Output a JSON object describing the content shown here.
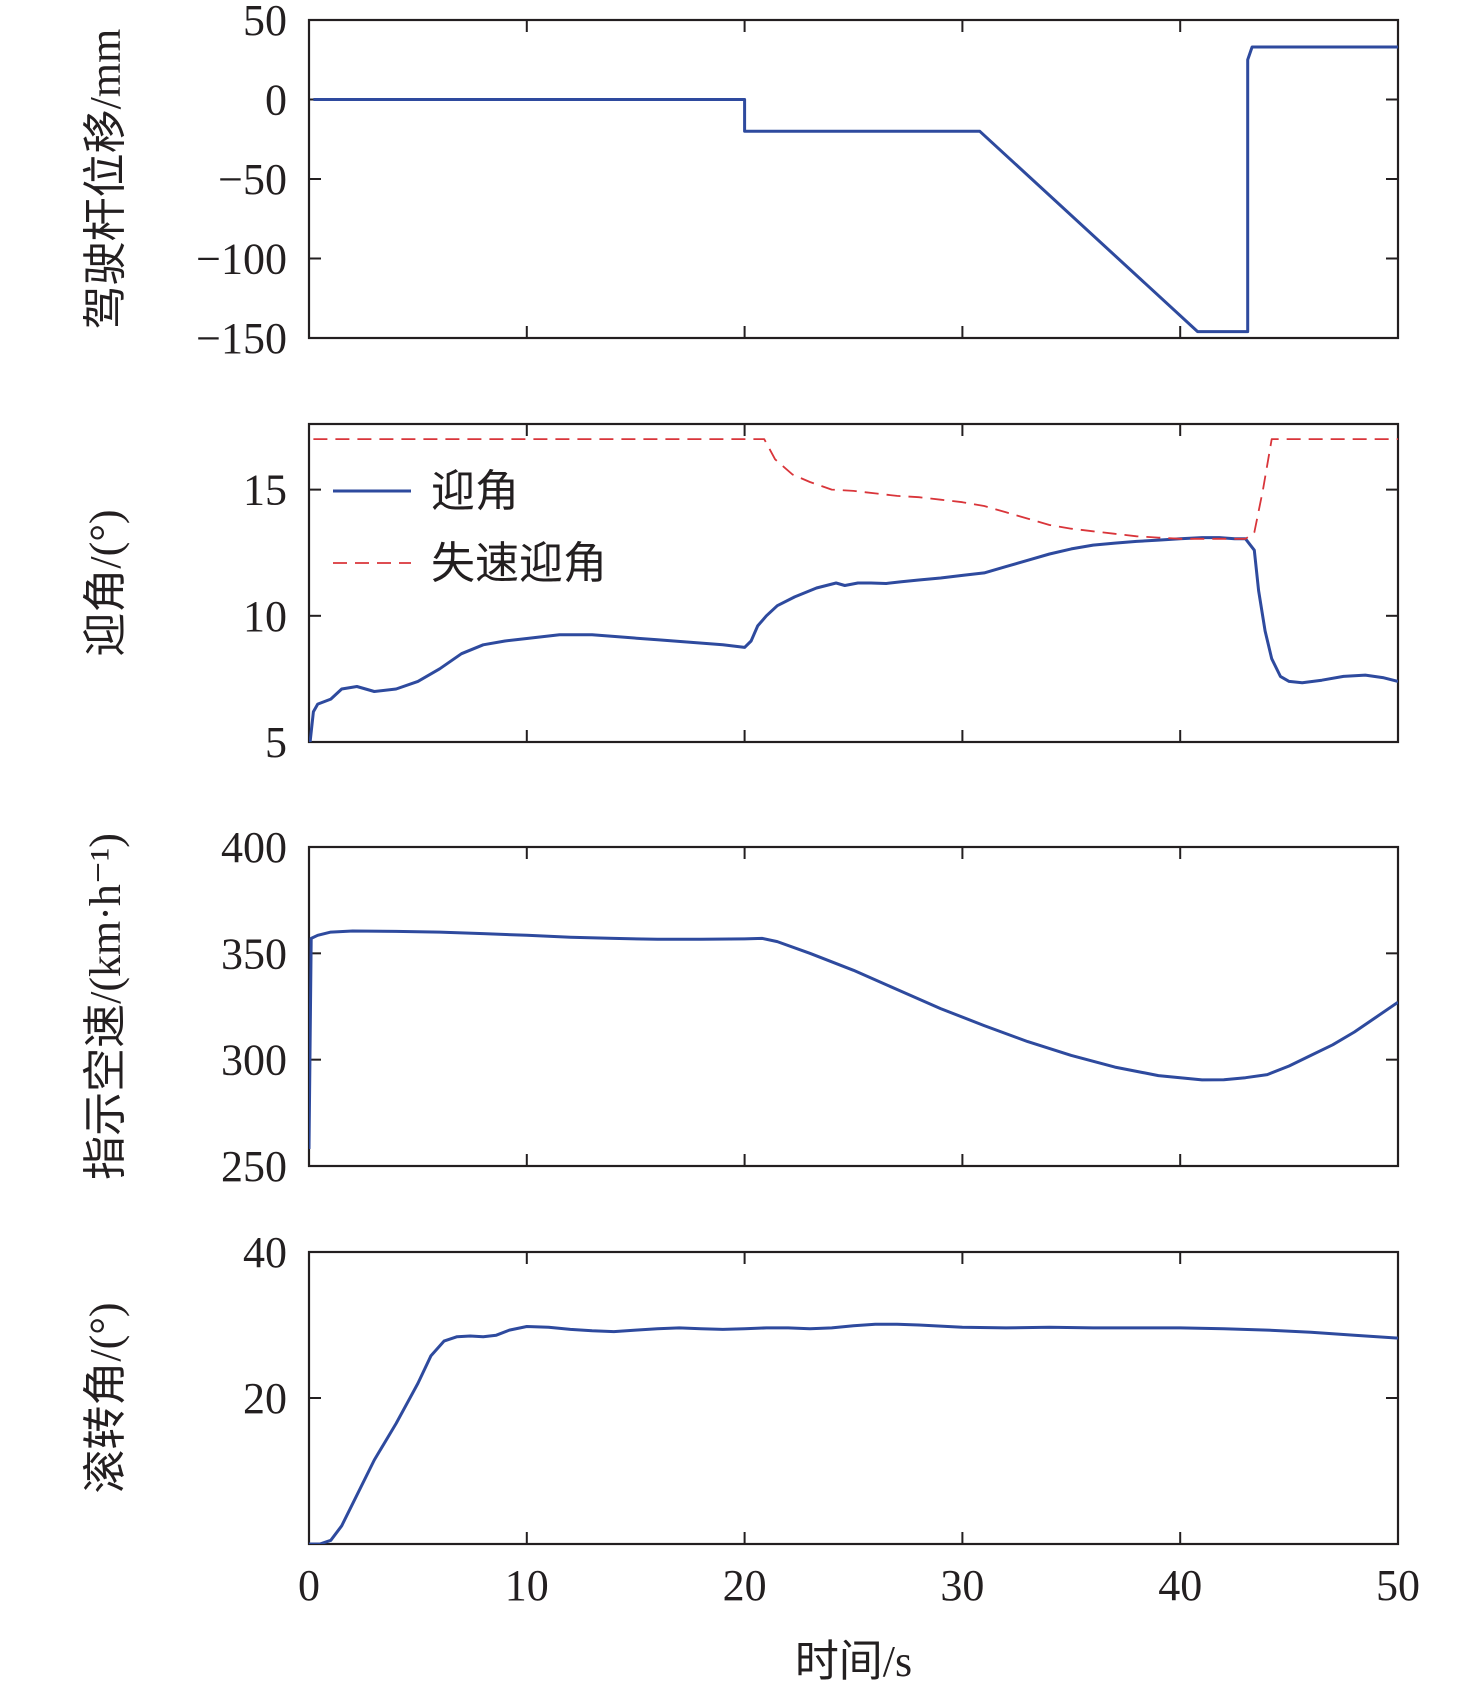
{
  "chart_data": [
    {
      "type": "line",
      "ylabel": "驾驶杆位移/mm",
      "xlim": [
        0,
        50
      ],
      "ylim": [
        -150,
        50
      ],
      "yticks": [
        50,
        0,
        -50,
        -100,
        -150
      ],
      "ytick_labels": [
        "50",
        "0",
        "−50",
        "−100",
        "−150"
      ],
      "xticks": [
        10,
        20,
        30,
        40
      ],
      "series": [
        {
          "color": "#2e4a9e",
          "dash": "solid",
          "x": [
            0.2,
            20.0,
            20.0,
            30.8,
            40.8,
            43.1,
            43.1,
            43.3,
            50.0
          ],
          "y": [
            0,
            0,
            -20,
            -20,
            -146,
            -146,
            25,
            33,
            33
          ]
        }
      ]
    },
    {
      "type": "line",
      "ylabel": "迎角/(°)",
      "xlim": [
        0,
        50
      ],
      "ylim": [
        5,
        17.6
      ],
      "yticks": [
        15,
        10,
        5
      ],
      "ytick_labels": [
        "15",
        "10",
        "5"
      ],
      "xticks": [
        10,
        20,
        30,
        40
      ],
      "legend_position": "top-left",
      "series": [
        {
          "name": "迎角",
          "color": "#2e4a9e",
          "dash": "solid",
          "x": [
            0.05,
            0.2,
            0.4,
            1.0,
            1.5,
            2.2,
            3.0,
            4.0,
            5.0,
            6.0,
            7.0,
            8.0,
            9.0,
            10.0,
            11.5,
            13.0,
            14.5,
            16.0,
            17.5,
            19.0,
            20.0,
            20.3,
            20.6,
            21.0,
            21.5,
            22.3,
            23.3,
            24.2,
            24.6,
            25.2,
            25.8,
            26.5,
            27.2,
            28.0,
            29.0,
            30.0,
            31.0,
            32.0,
            33.0,
            34.0,
            35.0,
            36.0,
            37.0,
            38.0,
            39.0,
            40.0,
            41.0,
            41.8,
            42.5,
            43.0,
            43.4,
            43.6,
            43.9,
            44.2,
            44.6,
            45.0,
            45.6,
            46.5,
            47.5,
            48.5,
            49.3,
            50.0
          ],
          "y": [
            5.0,
            6.2,
            6.5,
            6.7,
            7.1,
            7.2,
            7.0,
            7.1,
            7.4,
            7.9,
            8.5,
            8.85,
            9.0,
            9.1,
            9.25,
            9.25,
            9.15,
            9.05,
            8.95,
            8.85,
            8.75,
            9.0,
            9.6,
            10.0,
            10.4,
            10.75,
            11.1,
            11.3,
            11.2,
            11.3,
            11.3,
            11.28,
            11.35,
            11.42,
            11.5,
            11.6,
            11.7,
            11.95,
            12.2,
            12.45,
            12.65,
            12.8,
            12.88,
            12.95,
            13.0,
            13.05,
            13.1,
            13.1,
            13.05,
            13.05,
            12.6,
            11.0,
            9.4,
            8.3,
            7.6,
            7.4,
            7.35,
            7.45,
            7.6,
            7.65,
            7.55,
            7.4
          ]
        },
        {
          "name": "失速迎角",
          "color": "#d9353a",
          "dash": "dashed",
          "x": [
            0.2,
            20.9,
            21.4,
            22.2,
            23.0,
            24.0,
            25.0,
            26.0,
            27.0,
            28.0,
            29.0,
            30.0,
            31.0,
            32.0,
            33.0,
            34.0,
            35.0,
            36.0,
            37.0,
            38.0,
            39.0,
            40.0,
            41.0,
            42.0,
            43.0,
            43.4,
            43.8,
            44.2,
            50.0
          ],
          "y": [
            17.0,
            17.0,
            16.2,
            15.6,
            15.3,
            15.0,
            14.95,
            14.85,
            14.75,
            14.7,
            14.6,
            14.5,
            14.35,
            14.1,
            13.85,
            13.6,
            13.45,
            13.35,
            13.25,
            13.15,
            13.1,
            13.05,
            13.05,
            13.05,
            13.05,
            13.3,
            15.0,
            17.0,
            17.0
          ]
        }
      ]
    },
    {
      "type": "line",
      "ylabel": "指示空速/(km·h⁻¹)",
      "xlim": [
        0,
        50
      ],
      "ylim": [
        250,
        400
      ],
      "yticks": [
        400,
        350,
        300,
        250
      ],
      "ytick_labels": [
        "400",
        "350",
        "300",
        "250"
      ],
      "xticks": [
        10,
        20,
        30,
        40
      ],
      "series": [
        {
          "color": "#2e4a9e",
          "dash": "solid",
          "x": [
            0.0,
            0.1,
            0.4,
            1.0,
            2.0,
            4.0,
            6.0,
            8.0,
            10.0,
            12.0,
            14.0,
            16.0,
            18.0,
            20.0,
            20.8,
            21.5,
            23.0,
            25.0,
            27.0,
            29.0,
            31.0,
            33.0,
            35.0,
            37.0,
            39.0,
            41.0,
            42.0,
            43.0,
            44.0,
            45.0,
            46.0,
            47.0,
            48.0,
            49.0,
            50.0
          ],
          "y": [
            258,
            357,
            358.5,
            360,
            360.5,
            360.3,
            360,
            359.3,
            358.5,
            357.6,
            357,
            356.6,
            356.6,
            356.8,
            357,
            355.5,
            350,
            342,
            333,
            324,
            316,
            308.5,
            302,
            296.5,
            292.5,
            290.5,
            290.6,
            291.5,
            293,
            297,
            302,
            307,
            313,
            320,
            327
          ]
        }
      ]
    },
    {
      "type": "line",
      "ylabel": "滚转角/(°)",
      "xlim": [
        0,
        50
      ],
      "ylim": [
        0,
        40
      ],
      "yticks": [
        40,
        20
      ],
      "ytick_labels": [
        "40",
        "20"
      ],
      "xticks": [
        10,
        20,
        30,
        40
      ],
      "xtick_labels": [
        "0",
        "10",
        "20",
        "30",
        "40",
        "50"
      ],
      "xtick_values": [
        0,
        10,
        20,
        30,
        40,
        50
      ],
      "xlabel": "时间/s",
      "series": [
        {
          "color": "#2e4a9e",
          "dash": "solid",
          "x": [
            0.0,
            0.5,
            1.0,
            1.5,
            2.0,
            3.0,
            4.0,
            5.0,
            5.6,
            6.2,
            6.8,
            7.4,
            8.0,
            8.6,
            9.2,
            10.0,
            11.0,
            12.0,
            13.0,
            14.0,
            15.0,
            16.0,
            17.0,
            18.0,
            19.0,
            20.0,
            21.0,
            22.0,
            23.0,
            24.0,
            25.0,
            26.0,
            27.0,
            28.0,
            30.0,
            32.0,
            34.0,
            36.0,
            38.0,
            40.0,
            42.0,
            44.0,
            46.0,
            48.0,
            50.0
          ],
          "y": [
            0,
            0,
            0.5,
            2.5,
            5.5,
            11.5,
            16.5,
            22,
            25.8,
            27.8,
            28.4,
            28.5,
            28.4,
            28.6,
            29.3,
            29.8,
            29.7,
            29.4,
            29.2,
            29.1,
            29.3,
            29.5,
            29.6,
            29.5,
            29.4,
            29.5,
            29.6,
            29.6,
            29.5,
            29.6,
            29.9,
            30.1,
            30.1,
            30.0,
            29.7,
            29.6,
            29.7,
            29.6,
            29.6,
            29.6,
            29.5,
            29.3,
            29.0,
            28.6,
            28.2
          ]
        }
      ]
    }
  ]
}
